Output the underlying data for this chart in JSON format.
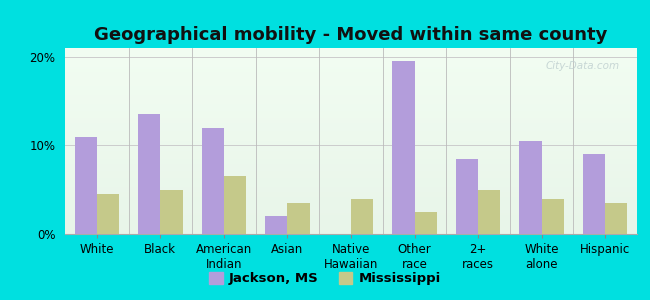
{
  "title": "Geographical mobility - Moved within same county",
  "categories": [
    "White",
    "Black",
    "American\nIndian",
    "Asian",
    "Native\nHawaiian",
    "Other\nrace",
    "2+\nraces",
    "White\nalone",
    "Hispanic"
  ],
  "jackson_values": [
    11.0,
    13.5,
    12.0,
    2.0,
    0.0,
    19.5,
    8.5,
    10.5,
    9.0
  ],
  "mississippi_values": [
    4.5,
    5.0,
    6.5,
    3.5,
    4.0,
    2.5,
    5.0,
    4.0,
    3.5
  ],
  "jackson_color": "#b39ddb",
  "mississippi_color": "#c5c98a",
  "ylim": [
    0,
    21
  ],
  "yticks": [
    0,
    10,
    20
  ],
  "ytick_labels": [
    "0%",
    "10%",
    "20%"
  ],
  "bar_width": 0.35,
  "legend_labels": [
    "Jackson, MS",
    "Mississippi"
  ],
  "title_fontsize": 13,
  "tick_fontsize": 8.5,
  "legend_fontsize": 9.5,
  "watermark": "City-Data.com",
  "outer_bg": "#00e0e0"
}
